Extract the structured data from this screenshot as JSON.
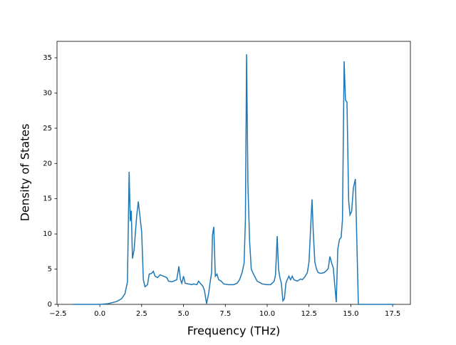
{
  "chart_data": {
    "type": "line",
    "xlabel": "Frequency (THz)",
    "ylabel": "Density of States",
    "x": [
      -1.6,
      0,
      0.5,
      1.0,
      1.3,
      1.5,
      1.65,
      1.75,
      1.82,
      1.88,
      1.95,
      2.05,
      2.2,
      2.3,
      2.5,
      2.6,
      2.7,
      2.85,
      2.95,
      3.1,
      3.2,
      3.3,
      3.45,
      3.6,
      3.8,
      4.0,
      4.1,
      4.3,
      4.5,
      4.6,
      4.72,
      4.82,
      4.9,
      5.0,
      5.1,
      5.3,
      5.5,
      5.6,
      5.8,
      5.9,
      6.0,
      6.15,
      6.25,
      6.38,
      6.5,
      6.6,
      6.68,
      6.73,
      6.81,
      6.9,
      7.0,
      7.1,
      7.25,
      7.4,
      7.7,
      8.0,
      8.2,
      8.35,
      8.5,
      8.62,
      8.7,
      8.77,
      8.85,
      8.95,
      9.05,
      9.2,
      9.4,
      9.7,
      10.0,
      10.2,
      10.3,
      10.42,
      10.5,
      10.6,
      10.68,
      10.76,
      10.85,
      10.94,
      11.03,
      11.12,
      11.2,
      11.3,
      11.4,
      11.5,
      11.6,
      11.8,
      12.0,
      12.1,
      12.25,
      12.4,
      12.5,
      12.68,
      12.76,
      12.85,
      12.95,
      13.05,
      13.2,
      13.4,
      13.55,
      13.65,
      13.75,
      13.85,
      13.95,
      14.13,
      14.22,
      14.32,
      14.42,
      14.5,
      14.6,
      14.68,
      14.77,
      14.87,
      14.95,
      15.05,
      15.15,
      15.27,
      15.45,
      17.6
    ],
    "series": [
      {
        "color": "#1f77b4",
        "values": [
          0,
          0,
          0.1,
          0.4,
          0.8,
          1.5,
          3.2,
          18.8,
          11.8,
          13.3,
          6.5,
          7.8,
          12.5,
          14.6,
          10.3,
          3.5,
          2.5,
          2.8,
          4.3,
          4.4,
          4.7,
          4.0,
          3.8,
          4.2,
          4.0,
          3.8,
          3.3,
          3.2,
          3.4,
          3.5,
          5.4,
          3.5,
          3.0,
          4.0,
          3.0,
          2.9,
          2.8,
          2.9,
          2.8,
          3.3,
          3.0,
          2.6,
          2.0,
          0.1,
          1.5,
          3.3,
          4.5,
          9.8,
          11.0,
          4.0,
          4.3,
          3.5,
          3.3,
          2.9,
          2.8,
          2.8,
          3.0,
          3.5,
          4.5,
          5.8,
          12.0,
          35.5,
          17,
          9,
          5,
          4.2,
          3.3,
          2.9,
          2.8,
          2.8,
          3.0,
          3.3,
          4.2,
          9.7,
          5.0,
          3.8,
          3.0,
          0.5,
          0.8,
          3.0,
          3.5,
          4.0,
          3.5,
          4.0,
          3.5,
          3.3,
          3.6,
          3.5,
          3.9,
          4.5,
          6.0,
          14.9,
          10,
          6.0,
          5.0,
          4.5,
          4.4,
          4.5,
          4.8,
          5.1,
          6.8,
          5.9,
          5.2,
          0.3,
          7.8,
          9.2,
          9.5,
          12.0,
          34.5,
          29,
          28.7,
          14.7,
          12.7,
          13.2,
          16.5,
          17.8,
          0,
          0
        ]
      }
    ],
    "xlim": [
      -2.56,
      18.56
    ],
    "ylim": [
      0,
      37.33
    ],
    "xticks": [
      {
        "value": -2.5,
        "label": "−2.5"
      },
      {
        "value": 0,
        "label": "0.0"
      },
      {
        "value": 2.5,
        "label": "2.5"
      },
      {
        "value": 5,
        "label": "5.0"
      },
      {
        "value": 7.5,
        "label": "7.5"
      },
      {
        "value": 10,
        "label": "10.0"
      },
      {
        "value": 12.5,
        "label": "12.5"
      },
      {
        "value": 15,
        "label": "15.0"
      },
      {
        "value": 17.5,
        "label": "17.5"
      }
    ],
    "yticks": [
      0,
      5,
      10,
      15,
      20,
      25,
      30,
      35
    ]
  }
}
